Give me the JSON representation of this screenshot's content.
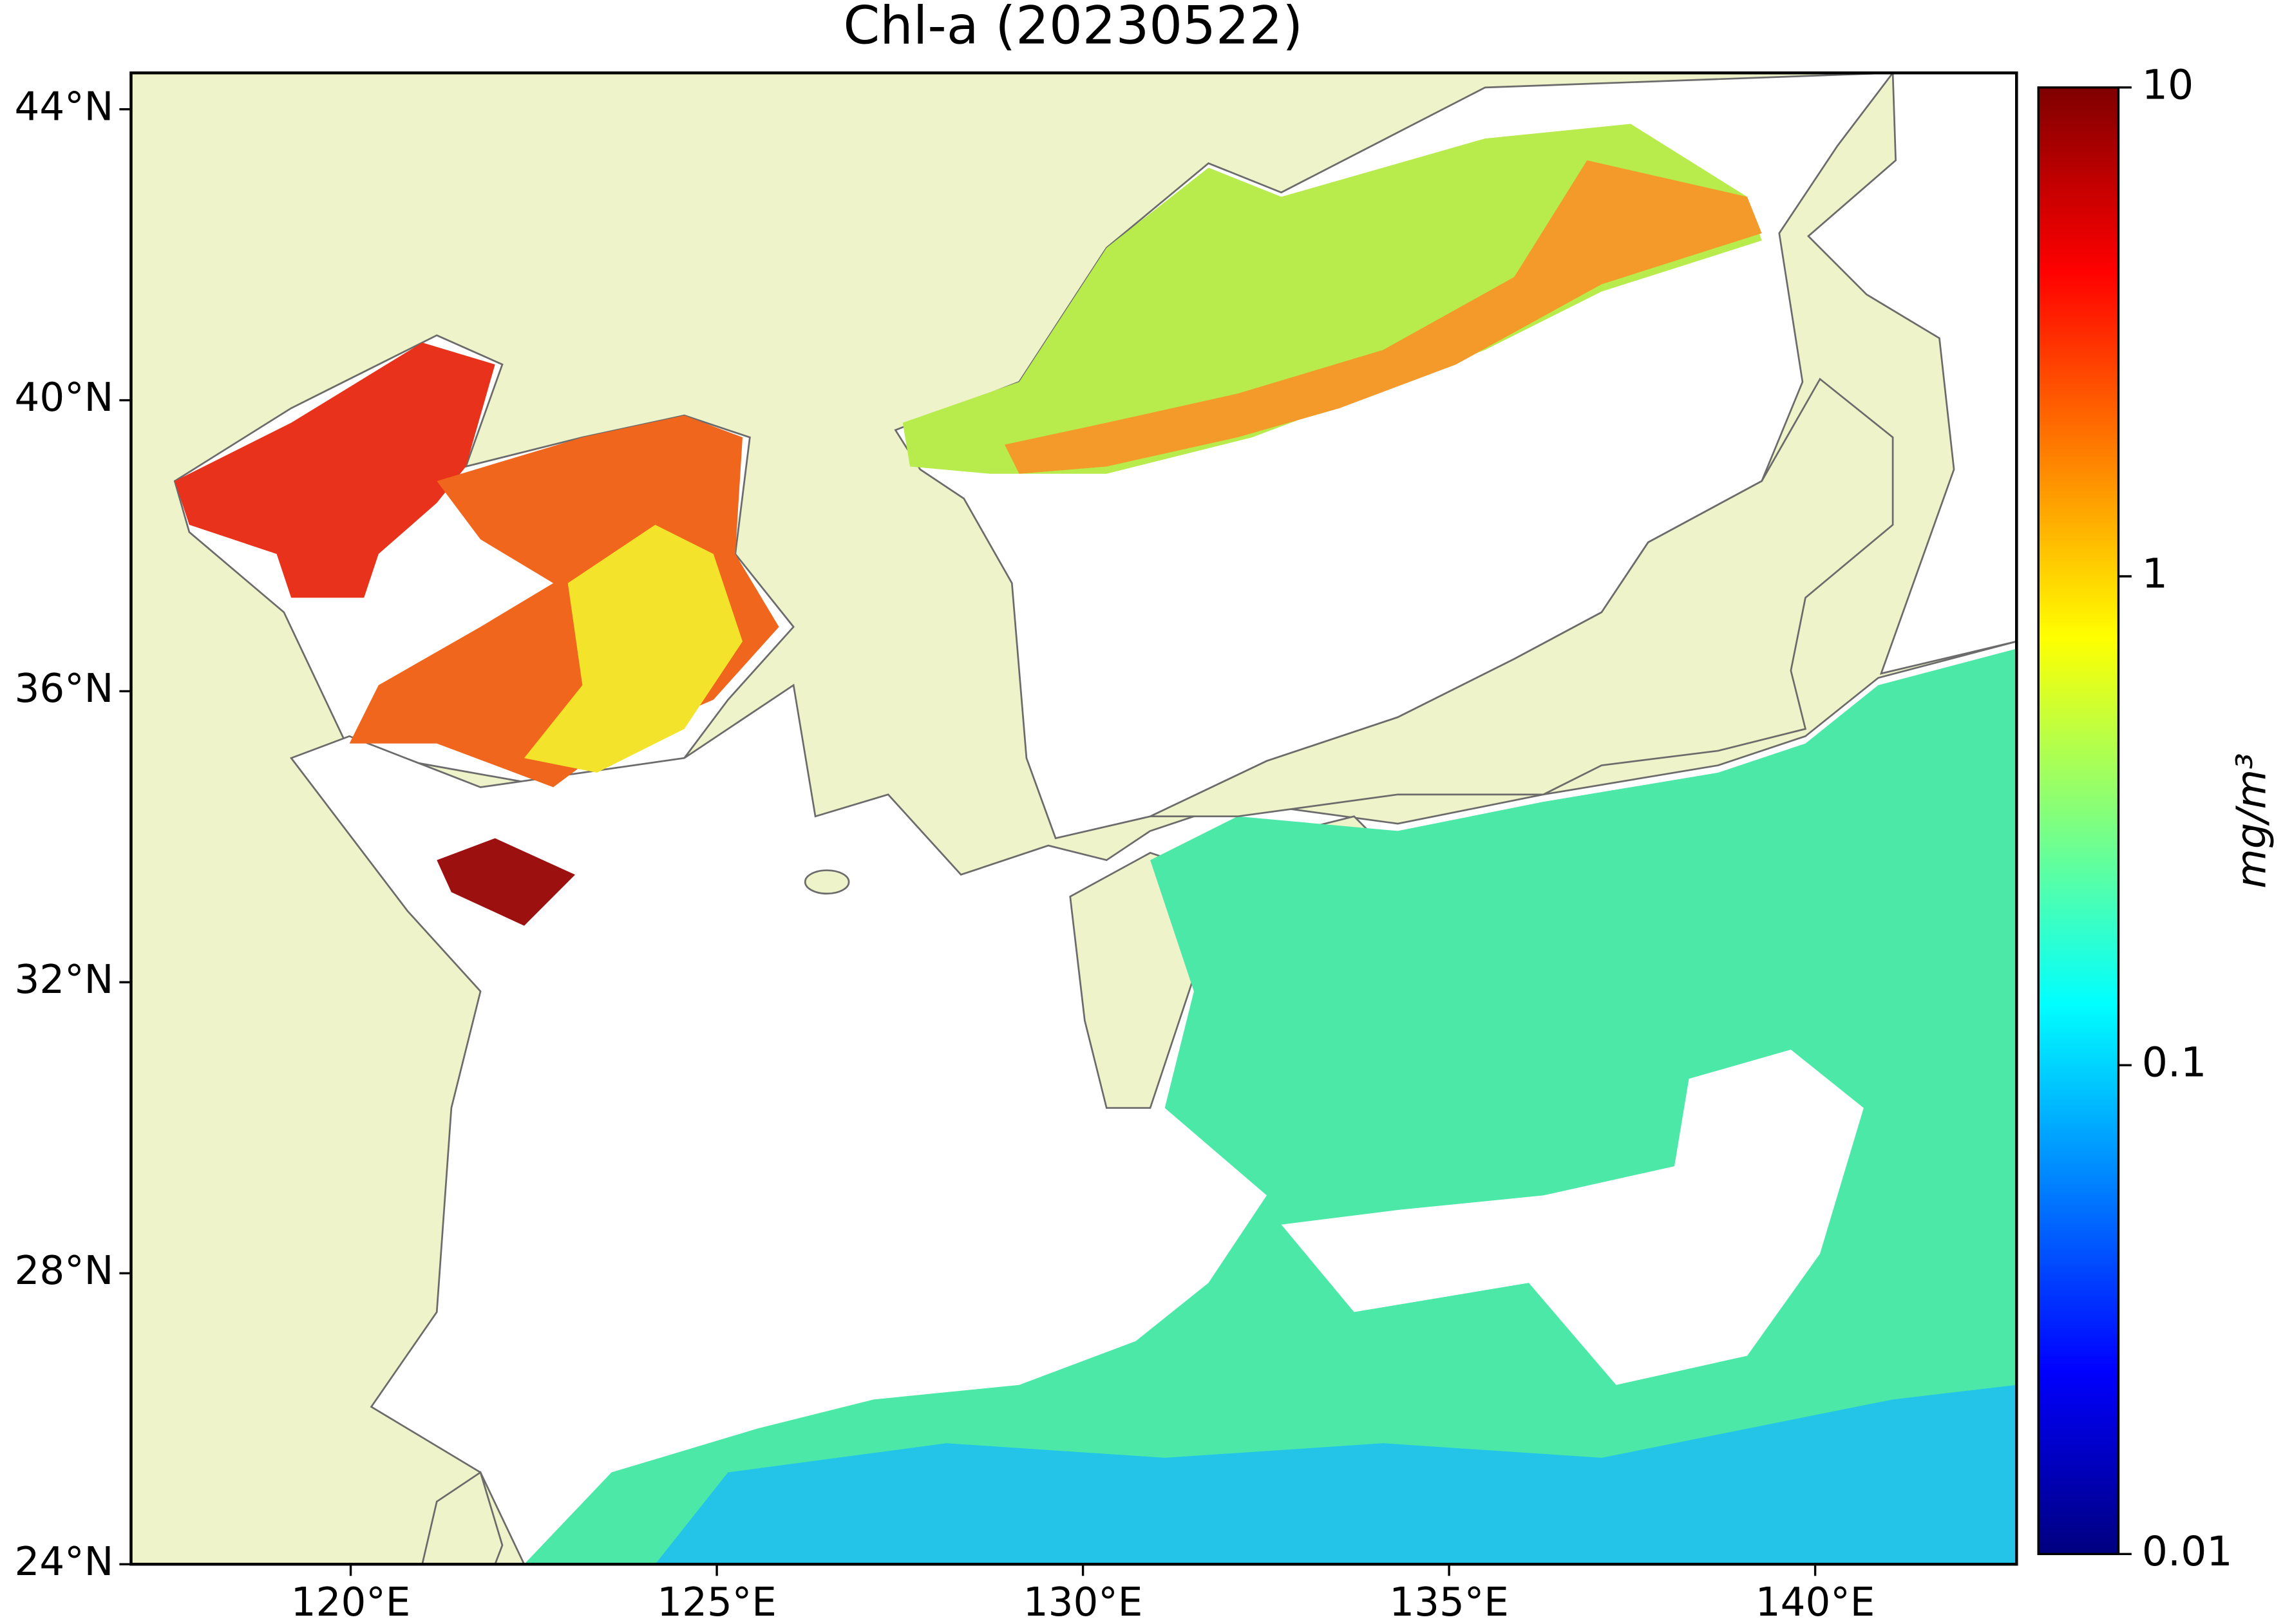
{
  "chart_data": {
    "type": "map",
    "title": "Chl-a (20230522)",
    "xlim": [
      117,
      142.75
    ],
    "ylim": [
      24,
      44.5
    ],
    "xticks": [
      {
        "value": 120,
        "label": "120°E"
      },
      {
        "value": 125,
        "label": "125°E"
      },
      {
        "value": 130,
        "label": "130°E"
      },
      {
        "value": 135,
        "label": "135°E"
      },
      {
        "value": 140,
        "label": "140°E"
      }
    ],
    "yticks": [
      {
        "value": 24,
        "label": "24°N"
      },
      {
        "value": 28,
        "label": "28°N"
      },
      {
        "value": 32,
        "label": "32°N"
      },
      {
        "value": 36,
        "label": "36°N"
      },
      {
        "value": 40,
        "label": "40°N"
      },
      {
        "value": 44,
        "label": "44°N"
      }
    ],
    "colorbar": {
      "label": "mg/m³",
      "scale": "log",
      "colormap": "jet",
      "lim": [
        0.01,
        10
      ],
      "ticks": [
        0.01,
        0.1,
        1,
        10
      ]
    }
  }
}
